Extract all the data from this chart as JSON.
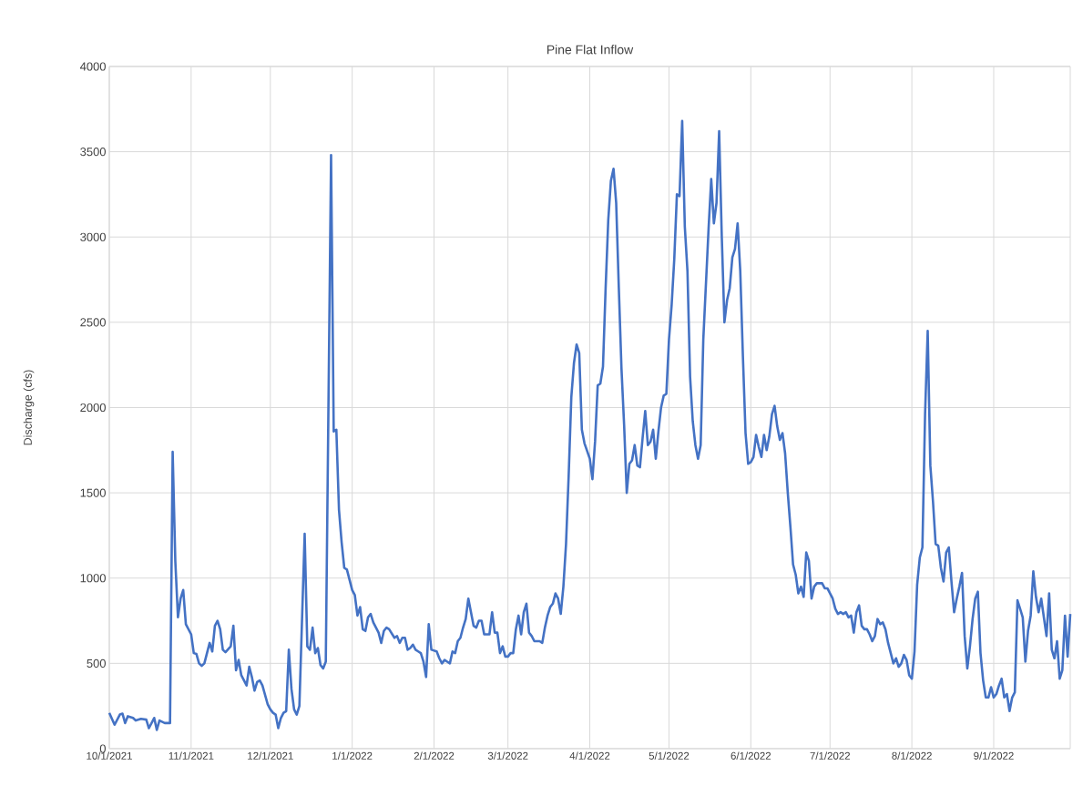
{
  "chart_data": {
    "type": "line",
    "title": "Pine Flat Inflow",
    "ylabel": "Discharge (cfs)",
    "grid": true,
    "color": "#4472c4",
    "xlim": [
      "2021-10-01",
      "2022-09-30"
    ],
    "xticks": [
      {
        "value": "2021-10-01",
        "label": "10/1/2021"
      },
      {
        "value": "2021-11-01",
        "label": "11/1/2021"
      },
      {
        "value": "2021-12-01",
        "label": "12/1/2021"
      },
      {
        "value": "2022-01-01",
        "label": "1/1/2022"
      },
      {
        "value": "2022-02-01",
        "label": "2/1/2022"
      },
      {
        "value": "2022-03-01",
        "label": "3/1/2022"
      },
      {
        "value": "2022-04-01",
        "label": "4/1/2022"
      },
      {
        "value": "2022-05-01",
        "label": "5/1/2022"
      },
      {
        "value": "2022-06-01",
        "label": "6/1/2022"
      },
      {
        "value": "2022-07-01",
        "label": "7/1/2022"
      },
      {
        "value": "2022-08-01",
        "label": "8/1/2022"
      },
      {
        "value": "2022-09-01",
        "label": "9/1/2022"
      }
    ],
    "ylim": [
      0,
      4000
    ],
    "yticks": [
      0,
      500,
      1000,
      1500,
      2000,
      2500,
      3000,
      3500,
      4000
    ],
    "x": [
      "2021-10-01",
      "2021-10-03",
      "2021-10-05",
      "2021-10-06",
      "2021-10-07",
      "2021-10-08",
      "2021-10-10",
      "2021-10-11",
      "2021-10-13",
      "2021-10-15",
      "2021-10-16",
      "2021-10-18",
      "2021-10-19",
      "2021-10-20",
      "2021-10-22",
      "2021-10-24",
      "2021-10-25",
      "2021-10-26",
      "2021-10-27",
      "2021-10-28",
      "2021-10-29",
      "2021-10-30",
      "2021-11-01",
      "2021-11-02",
      "2021-11-03",
      "2021-11-04",
      "2021-11-05",
      "2021-11-06",
      "2021-11-08",
      "2021-11-09",
      "2021-11-10",
      "2021-11-11",
      "2021-11-12",
      "2021-11-13",
      "2021-11-14",
      "2021-11-16",
      "2021-11-17",
      "2021-11-18",
      "2021-11-19",
      "2021-11-20",
      "2021-11-21",
      "2021-11-22",
      "2021-11-23",
      "2021-11-24",
      "2021-11-25",
      "2021-11-26",
      "2021-11-27",
      "2021-11-28",
      "2021-11-30",
      "2021-12-01",
      "2021-12-02",
      "2021-12-03",
      "2021-12-04",
      "2021-12-05",
      "2021-12-06",
      "2021-12-07",
      "2021-12-08",
      "2021-12-09",
      "2021-12-10",
      "2021-12-11",
      "2021-12-12",
      "2021-12-14",
      "2021-12-15",
      "2021-12-16",
      "2021-12-17",
      "2021-12-18",
      "2021-12-19",
      "2021-12-20",
      "2021-12-21",
      "2021-12-22",
      "2021-12-24",
      "2021-12-25",
      "2021-12-26",
      "2021-12-27",
      "2021-12-28",
      "2021-12-29",
      "2021-12-30",
      "2022-01-01",
      "2022-01-02",
      "2022-01-03",
      "2022-01-04",
      "2022-01-05",
      "2022-01-06",
      "2022-01-07",
      "2022-01-08",
      "2022-01-09",
      "2022-01-11",
      "2022-01-12",
      "2022-01-13",
      "2022-01-14",
      "2022-01-15",
      "2022-01-17",
      "2022-01-18",
      "2022-01-19",
      "2022-01-20",
      "2022-01-21",
      "2022-01-22",
      "2022-01-23",
      "2022-01-24",
      "2022-01-25",
      "2022-01-26",
      "2022-01-27",
      "2022-01-28",
      "2022-01-29",
      "2022-01-30",
      "2022-01-31",
      "2022-02-02",
      "2022-02-03",
      "2022-02-04",
      "2022-02-05",
      "2022-02-06",
      "2022-02-07",
      "2022-02-08",
      "2022-02-09",
      "2022-02-10",
      "2022-02-11",
      "2022-02-12",
      "2022-02-13",
      "2022-02-14",
      "2022-02-15",
      "2022-02-16",
      "2022-02-17",
      "2022-02-18",
      "2022-02-19",
      "2022-02-20",
      "2022-02-22",
      "2022-02-23",
      "2022-02-24",
      "2022-02-25",
      "2022-02-26",
      "2022-02-27",
      "2022-02-28",
      "2022-03-01",
      "2022-03-02",
      "2022-03-03",
      "2022-03-04",
      "2022-03-05",
      "2022-03-06",
      "2022-03-07",
      "2022-03-08",
      "2022-03-09",
      "2022-03-10",
      "2022-03-11",
      "2022-03-13",
      "2022-03-14",
      "2022-03-15",
      "2022-03-16",
      "2022-03-17",
      "2022-03-18",
      "2022-03-19",
      "2022-03-20",
      "2022-03-21",
      "2022-03-22",
      "2022-03-23",
      "2022-03-24",
      "2022-03-25",
      "2022-03-26",
      "2022-03-27",
      "2022-03-28",
      "2022-03-29",
      "2022-03-30",
      "2022-04-01",
      "2022-04-02",
      "2022-04-03",
      "2022-04-04",
      "2022-04-05",
      "2022-04-06",
      "2022-04-07",
      "2022-04-08",
      "2022-04-09",
      "2022-04-10",
      "2022-04-11",
      "2022-04-12",
      "2022-04-13",
      "2022-04-14",
      "2022-04-15",
      "2022-04-16",
      "2022-04-17",
      "2022-04-18",
      "2022-04-19",
      "2022-04-20",
      "2022-04-21",
      "2022-04-22",
      "2022-04-23",
      "2022-04-24",
      "2022-04-25",
      "2022-04-26",
      "2022-04-27",
      "2022-04-28",
      "2022-04-29",
      "2022-04-30",
      "2022-05-01",
      "2022-05-02",
      "2022-05-03",
      "2022-05-04",
      "2022-05-05",
      "2022-05-06",
      "2022-05-07",
      "2022-05-08",
      "2022-05-09",
      "2022-05-10",
      "2022-05-11",
      "2022-05-12",
      "2022-05-13",
      "2022-05-14",
      "2022-05-16",
      "2022-05-17",
      "2022-05-18",
      "2022-05-19",
      "2022-05-20",
      "2022-05-21",
      "2022-05-22",
      "2022-05-23",
      "2022-05-24",
      "2022-05-25",
      "2022-05-26",
      "2022-05-27",
      "2022-05-28",
      "2022-05-29",
      "2022-05-30",
      "2022-05-31",
      "2022-06-01",
      "2022-06-02",
      "2022-06-03",
      "2022-06-04",
      "2022-06-05",
      "2022-06-06",
      "2022-06-07",
      "2022-06-08",
      "2022-06-09",
      "2022-06-10",
      "2022-06-11",
      "2022-06-12",
      "2022-06-13",
      "2022-06-14",
      "2022-06-15",
      "2022-06-16",
      "2022-06-17",
      "2022-06-18",
      "2022-06-19",
      "2022-06-20",
      "2022-06-21",
      "2022-06-22",
      "2022-06-23",
      "2022-06-24",
      "2022-06-25",
      "2022-06-26",
      "2022-06-27",
      "2022-06-28",
      "2022-06-29",
      "2022-06-30",
      "2022-07-02",
      "2022-07-03",
      "2022-07-04",
      "2022-07-05",
      "2022-07-06",
      "2022-07-07",
      "2022-07-08",
      "2022-07-09",
      "2022-07-10",
      "2022-07-11",
      "2022-07-12",
      "2022-07-13",
      "2022-07-14",
      "2022-07-15",
      "2022-07-16",
      "2022-07-17",
      "2022-07-18",
      "2022-07-19",
      "2022-07-20",
      "2022-07-21",
      "2022-07-22",
      "2022-07-23",
      "2022-07-24",
      "2022-07-25",
      "2022-07-26",
      "2022-07-27",
      "2022-07-28",
      "2022-07-29",
      "2022-07-30",
      "2022-07-31",
      "2022-08-01",
      "2022-08-02",
      "2022-08-03",
      "2022-08-04",
      "2022-08-05",
      "2022-08-06",
      "2022-08-07",
      "2022-08-08",
      "2022-08-09",
      "2022-08-10",
      "2022-08-11",
      "2022-08-12",
      "2022-08-13",
      "2022-08-14",
      "2022-08-15",
      "2022-08-16",
      "2022-08-17",
      "2022-08-18",
      "2022-08-19",
      "2022-08-20",
      "2022-08-21",
      "2022-08-22",
      "2022-08-23",
      "2022-08-24",
      "2022-08-25",
      "2022-08-26",
      "2022-08-27",
      "2022-08-28",
      "2022-08-29",
      "2022-08-30",
      "2022-08-31",
      "2022-09-01",
      "2022-09-02",
      "2022-09-03",
      "2022-09-04",
      "2022-09-05",
      "2022-09-06",
      "2022-09-07",
      "2022-09-08",
      "2022-09-09",
      "2022-09-10",
      "2022-09-11",
      "2022-09-12",
      "2022-09-13",
      "2022-09-14",
      "2022-09-15",
      "2022-09-16",
      "2022-09-17",
      "2022-09-18",
      "2022-09-19",
      "2022-09-20",
      "2022-09-21",
      "2022-09-22",
      "2022-09-23",
      "2022-09-24",
      "2022-09-25",
      "2022-09-26",
      "2022-09-27",
      "2022-09-28",
      "2022-09-29",
      "2022-09-30"
    ],
    "values": [
      210,
      140,
      200,
      205,
      150,
      190,
      180,
      165,
      175,
      170,
      120,
      180,
      110,
      165,
      150,
      150,
      1740,
      1100,
      770,
      880,
      930,
      730,
      670,
      560,
      555,
      500,
      485,
      500,
      620,
      570,
      720,
      750,
      700,
      580,
      565,
      600,
      720,
      460,
      520,
      430,
      400,
      370,
      480,
      420,
      340,
      390,
      400,
      370,
      260,
      230,
      210,
      200,
      120,
      180,
      210,
      220,
      580,
      350,
      230,
      200,
      250,
      1260,
      600,
      580,
      710,
      560,
      590,
      490,
      470,
      510,
      3480,
      1860,
      1870,
      1400,
      1210,
      1060,
      1050,
      930,
      900,
      780,
      830,
      700,
      690,
      770,
      790,
      740,
      680,
      620,
      690,
      710,
      700,
      650,
      660,
      620,
      650,
      650,
      580,
      590,
      610,
      580,
      570,
      560,
      510,
      420,
      730,
      580,
      570,
      530,
      500,
      520,
      510,
      500,
      570,
      560,
      630,
      650,
      710,
      760,
      880,
      800,
      720,
      710,
      750,
      750,
      670,
      670,
      800,
      680,
      680,
      560,
      600,
      540,
      540,
      560,
      560,
      700,
      780,
      670,
      800,
      850,
      680,
      660,
      630,
      630,
      620,
      710,
      780,
      830,
      850,
      910,
      880,
      790,
      950,
      1200,
      1600,
      2060,
      2260,
      2370,
      2320,
      1870,
      1790,
      1700,
      1580,
      1800,
      2130,
      2140,
      2240,
      2700,
      3100,
      3330,
      3400,
      3200,
      2700,
      2230,
      1900,
      1500,
      1670,
      1690,
      1780,
      1660,
      1650,
      1820,
      1980,
      1780,
      1800,
      1870,
      1700,
      1860,
      2000,
      2070,
      2080,
      2400,
      2600,
      2870,
      3250,
      3240,
      3680,
      3060,
      2800,
      2180,
      1920,
      1780,
      1700,
      1780,
      2400,
      3050,
      3340,
      3080,
      3200,
      3620,
      3000,
      2500,
      2630,
      2700,
      2880,
      2930,
      3080,
      2800,
      2300,
      1850,
      1670,
      1680,
      1710,
      1840,
      1770,
      1710,
      1840,
      1750,
      1830,
      1960,
      2010,
      1890,
      1810,
      1850,
      1730,
      1500,
      1300,
      1080,
      1020,
      910,
      950,
      890,
      1150,
      1100,
      880,
      950,
      970,
      970,
      970,
      940,
      940,
      880,
      820,
      790,
      800,
      790,
      800,
      770,
      780,
      680,
      800,
      840,
      720,
      700,
      700,
      670,
      630,
      660,
      760,
      730,
      740,
      700,
      620,
      560,
      500,
      530,
      480,
      500,
      550,
      520,
      430,
      410,
      570,
      960,
      1120,
      1180,
      1960,
      2450,
      1660,
      1450,
      1200,
      1190,
      1060,
      980,
      1150,
      1180,
      980,
      800,
      880,
      950,
      1030,
      660,
      470,
      600,
      760,
      880,
      920,
      560,
      400,
      300,
      300,
      360,
      300,
      320,
      370,
      410,
      300,
      320,
      220,
      300,
      330,
      870,
      820,
      770,
      510,
      690,
      780,
      1040,
      890,
      800,
      880,
      770,
      660,
      910,
      580,
      530,
      630,
      410,
      460,
      780,
      540,
      790
    ]
  }
}
